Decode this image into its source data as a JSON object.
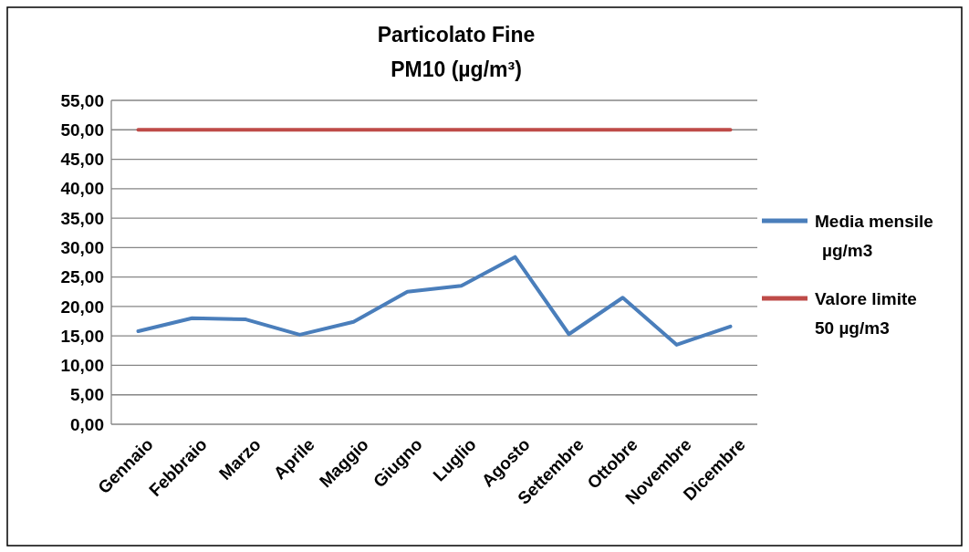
{
  "chart_data": {
    "type": "line",
    "title": "Particolato Fine",
    "subtitle": "PM10 (µg/m³)",
    "categories": [
      "Gennaio",
      "Febbraio",
      "Marzo",
      "Aprile",
      "Maggio",
      "Giugno",
      "Luglio",
      "Agosto",
      "Settembre",
      "Ottobre",
      "Novembre",
      "Dicembre"
    ],
    "series": [
      {
        "name": "Media mensile µg/m3",
        "color": "#4a7ebb",
        "values": [
          15.8,
          18.0,
          17.8,
          15.2,
          17.4,
          22.5,
          23.5,
          28.4,
          15.3,
          21.5,
          13.5,
          16.6
        ]
      },
      {
        "name": "Valore limite 50 µg/m3",
        "color": "#be4b48",
        "values": [
          50,
          50,
          50,
          50,
          50,
          50,
          50,
          50,
          50,
          50,
          50,
          50
        ]
      }
    ],
    "ylim": [
      0,
      55
    ],
    "yticks": [
      {
        "value": 0,
        "label": "0,00"
      },
      {
        "value": 5,
        "label": "5,00"
      },
      {
        "value": 10,
        "label": "10,00"
      },
      {
        "value": 15,
        "label": "15,00"
      },
      {
        "value": 20,
        "label": "20,00"
      },
      {
        "value": 25,
        "label": "25,00"
      },
      {
        "value": 30,
        "label": "30,00"
      },
      {
        "value": 35,
        "label": "35,00"
      },
      {
        "value": 40,
        "label": "40,00"
      },
      {
        "value": 45,
        "label": "45,00"
      },
      {
        "value": 50,
        "label": "50,00"
      },
      {
        "value": 55,
        "label": "55,00"
      }
    ],
    "grid": "y",
    "legend": "right",
    "marker": "none",
    "line_style": "solid"
  }
}
